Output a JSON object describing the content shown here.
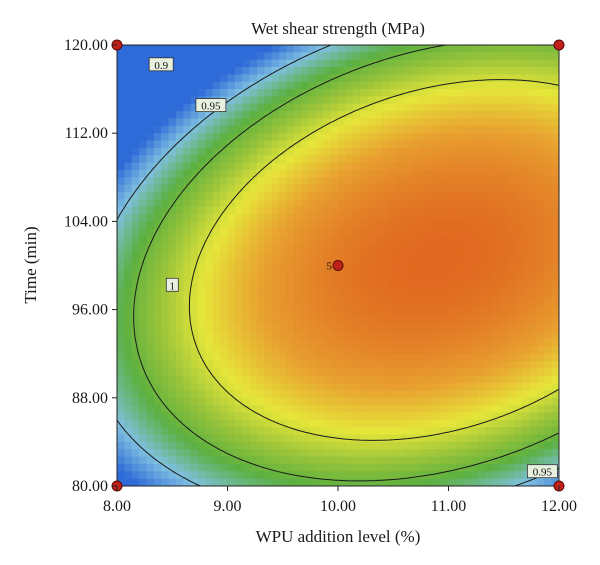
{
  "chart_data": {
    "type": "contour",
    "title": "Wet shear strength (MPa)",
    "xlabel": "WPU addition level (%)",
    "ylabel": "Time (min)",
    "xlim": [
      8.0,
      12.0
    ],
    "ylim": [
      80.0,
      120.0
    ],
    "x_ticks": [
      "8.00",
      "9.00",
      "10.00",
      "11.00",
      "12.00"
    ],
    "y_ticks": [
      "80.00",
      "88.00",
      "96.00",
      "104.00",
      "112.00",
      "120.00"
    ],
    "x_tick_values": [
      8,
      9,
      10,
      11,
      12
    ],
    "y_tick_values": [
      80,
      88,
      96,
      104,
      112,
      120
    ],
    "contours": [
      {
        "level": 0.9,
        "label": "0.9",
        "label_at": {
          "x": 8.4,
          "y": 118.2
        }
      },
      {
        "level": 0.95,
        "label": "0.95",
        "label_at": {
          "x": 8.85,
          "y": 114.5
        }
      },
      {
        "level": 0.95,
        "label": "0.95",
        "label_at": {
          "x": 11.85,
          "y": 81.3
        }
      },
      {
        "level": 1.0,
        "label": "1",
        "label_at": {
          "x": 8.5,
          "y": 98.2
        }
      }
    ],
    "design_points": [
      {
        "x": 8.0,
        "y": 120.0
      },
      {
        "x": 12.0,
        "y": 120.0
      },
      {
        "x": 8.0,
        "y": 80.0
      },
      {
        "x": 12.0,
        "y": 80.0
      },
      {
        "x": 10.0,
        "y": 100.0,
        "label": "5"
      }
    ],
    "colormap": [
      "#2e6ad8",
      "#7fc0e0",
      "#5cb040",
      "#9ac43a",
      "#e6e63a",
      "#e8a030",
      "#e06820"
    ],
    "point_color": "#c0201a"
  }
}
